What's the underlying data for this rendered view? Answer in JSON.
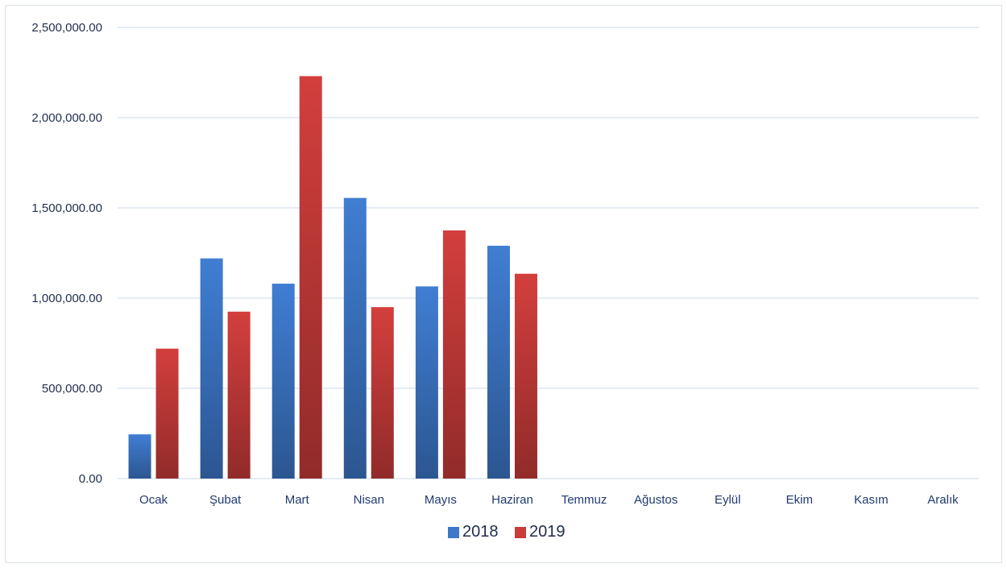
{
  "chart_data": {
    "type": "bar",
    "title": "",
    "xlabel": "",
    "ylabel": "",
    "categories": [
      "Ocak",
      "Şubat",
      "Mart",
      "Nisan",
      "Mayıs",
      "Haziran",
      "Temmuz",
      "Ağustos",
      "Eylül",
      "Ekim",
      "Kasım",
      "Aralık"
    ],
    "series": [
      {
        "name": "2018",
        "color": "#3d78c9",
        "values": [
          245000,
          1220000,
          1080000,
          1555000,
          1065000,
          1290000,
          null,
          null,
          null,
          null,
          null,
          null
        ]
      },
      {
        "name": "2019",
        "color": "#c93c3a",
        "values": [
          720000,
          925000,
          2230000,
          950000,
          1375000,
          1135000,
          null,
          null,
          null,
          null,
          null,
          null
        ]
      }
    ],
    "ylim": [
      0,
      2500000
    ],
    "yticks": [
      0,
      500000,
      1000000,
      1500000,
      2000000,
      2500000
    ],
    "ytick_labels": [
      "0.00",
      "500,000.00",
      "1,000,000.00",
      "1,500,000.00",
      "2,000,000.00",
      "2,500,000.00"
    ],
    "grid": true,
    "legend_position": "bottom"
  }
}
